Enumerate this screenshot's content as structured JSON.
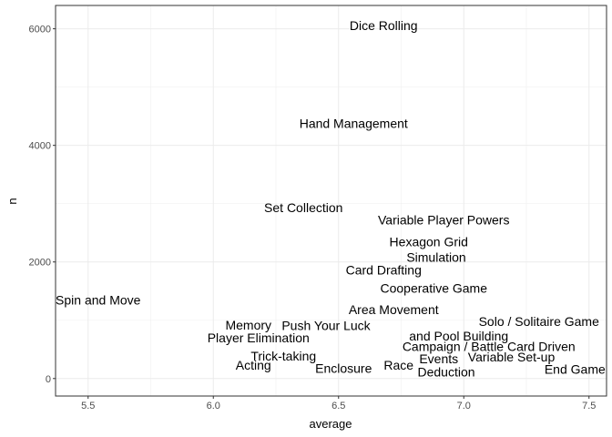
{
  "chart_data": {
    "type": "scatter",
    "title": "",
    "xlabel": "average",
    "ylabel": "n",
    "xlim": [
      5.37,
      7.57
    ],
    "ylim": [
      -300,
      6400
    ],
    "x_ticks": [
      "5.5",
      "6.0",
      "6.5",
      "7.0",
      "7.5"
    ],
    "y_ticks": [
      "0",
      "2000",
      "4000",
      "6000"
    ],
    "grid": true,
    "marker": "text-label",
    "points": [
      {
        "label": "Dice Rolling",
        "x": 6.68,
        "y": 6060
      },
      {
        "label": "Hand Management",
        "x": 6.56,
        "y": 4380
      },
      {
        "label": "Set Collection",
        "x": 6.36,
        "y": 2930
      },
      {
        "label": "Variable Player Powers",
        "x": 6.92,
        "y": 2720
      },
      {
        "label": "Hexagon Grid",
        "x": 6.86,
        "y": 2350
      },
      {
        "label": "Simulation",
        "x": 6.89,
        "y": 2080
      },
      {
        "label": "Card Drafting",
        "x": 6.68,
        "y": 1860
      },
      {
        "label": "Cooperative Game",
        "x": 6.88,
        "y": 1550
      },
      {
        "label": "Spin and Move",
        "x": 5.54,
        "y": 1350
      },
      {
        "label": "Area Movement",
        "x": 6.72,
        "y": 1180
      },
      {
        "label": "Solo / Solitaire Game",
        "x": 7.3,
        "y": 980
      },
      {
        "label": "Memory",
        "x": 6.14,
        "y": 920
      },
      {
        "label": "Push Your Luck",
        "x": 6.45,
        "y": 910
      },
      {
        "label": "and Pool Building",
        "x": 6.98,
        "y": 730
      },
      {
        "label": "Player Elimination",
        "x": 6.18,
        "y": 700
      },
      {
        "label": "Campaign / Battle Card Driven",
        "x": 7.1,
        "y": 550
      },
      {
        "label": "Trick-taking",
        "x": 6.28,
        "y": 390
      },
      {
        "label": "Variable Set-up",
        "x": 7.19,
        "y": 370
      },
      {
        "label": "Events",
        "x": 6.9,
        "y": 340
      },
      {
        "label": "Acting",
        "x": 6.16,
        "y": 230
      },
      {
        "label": "Race",
        "x": 6.74,
        "y": 230
      },
      {
        "label": "Enclosure",
        "x": 6.52,
        "y": 180
      },
      {
        "label": "End Game Bonuses",
        "x": 7.55,
        "y": 160
      },
      {
        "label": "Deduction",
        "x": 6.93,
        "y": 110
      }
    ]
  }
}
